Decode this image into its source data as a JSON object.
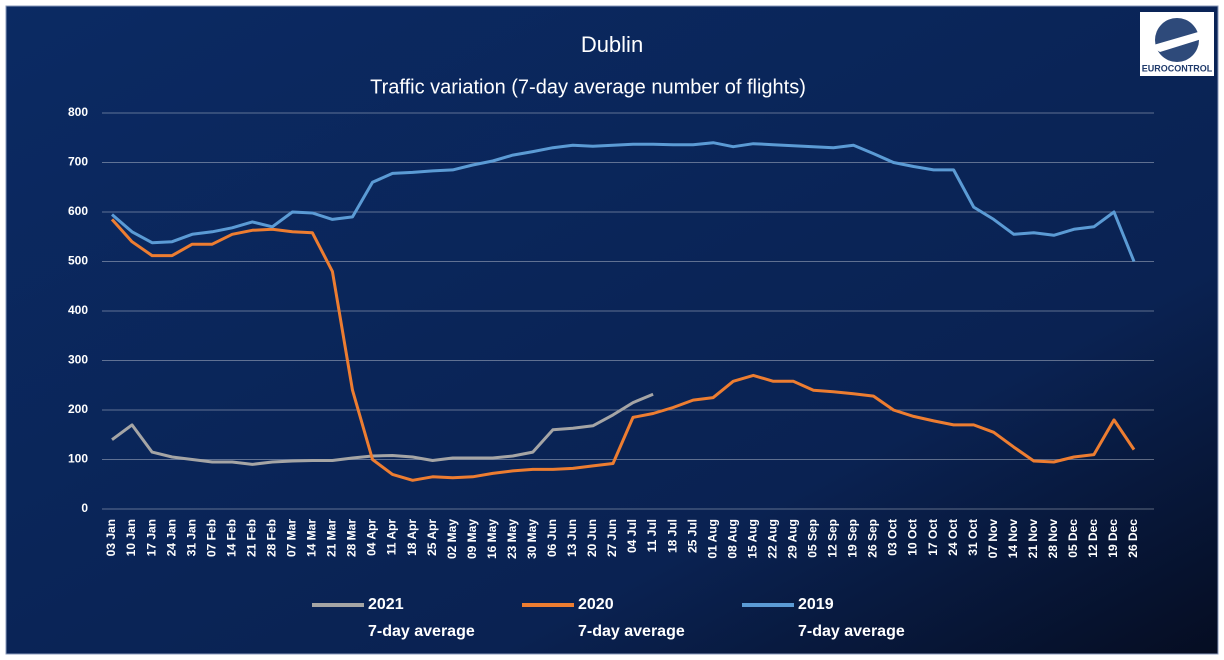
{
  "chart_data": {
    "type": "line",
    "title": "Dublin",
    "subtitle": "Traffic variation (7-day average number of flights)",
    "logo_text": "EUROCONTROL",
    "categories": [
      "03 Jan",
      "10 Jan",
      "17 Jan",
      "24 Jan",
      "31 Jan",
      "07 Feb",
      "14 Feb",
      "21 Feb",
      "28 Feb",
      "07 Mar",
      "14 Mar",
      "21 Mar",
      "28 Mar",
      "04 Apr",
      "11 Apr",
      "18 Apr",
      "25 Apr",
      "02 May",
      "09 May",
      "16 May",
      "23 May",
      "30 May",
      "06 Jun",
      "13 Jun",
      "20 Jun",
      "27 Jun",
      "04 Jul",
      "11 Jul",
      "18 Jul",
      "25 Jul",
      "01 Aug",
      "08 Aug",
      "15 Aug",
      "22 Aug",
      "29 Aug",
      "05 Sep",
      "12 Sep",
      "19 Sep",
      "26 Sep",
      "03 Oct",
      "10 Oct",
      "17 Oct",
      "24 Oct",
      "31 Oct",
      "07 Nov",
      "14 Nov",
      "21 Nov",
      "28 Nov",
      "05 Dec",
      "12 Dec",
      "19 Dec",
      "26 Dec"
    ],
    "series": [
      {
        "name": "2021",
        "note": "7-day average",
        "color": "#a5a5a5",
        "values": [
          140,
          170,
          115,
          105,
          100,
          95,
          95,
          90,
          95,
          97,
          98,
          98,
          103,
          107,
          108,
          105,
          98,
          103,
          103,
          103,
          107,
          115,
          160,
          163,
          168,
          190,
          215,
          232,
          null,
          null,
          null,
          null,
          null,
          null,
          null,
          null,
          null,
          null,
          null,
          null,
          null,
          null,
          null,
          null,
          null,
          null,
          null,
          null,
          null,
          null,
          null,
          null
        ]
      },
      {
        "name": "2020",
        "note": "7-day average",
        "color": "#ed7d31",
        "values": [
          585,
          540,
          512,
          512,
          535,
          535,
          555,
          563,
          565,
          560,
          558,
          480,
          240,
          100,
          70,
          58,
          65,
          63,
          65,
          72,
          77,
          80,
          80,
          82,
          87,
          92,
          185,
          193,
          205,
          220,
          225,
          258,
          270,
          258,
          258,
          240,
          237,
          233,
          228,
          200,
          187,
          178,
          170,
          170,
          155,
          125,
          97,
          95,
          105,
          110,
          180,
          120
        ]
      },
      {
        "name": "2019",
        "note": "7-day average",
        "color": "#5b9bd5",
        "values": [
          595,
          560,
          538,
          540,
          555,
          560,
          568,
          580,
          570,
          600,
          598,
          585,
          590,
          660,
          678,
          680,
          683,
          685,
          695,
          703,
          715,
          722,
          730,
          735,
          733,
          735,
          737,
          737,
          736,
          736,
          740,
          732,
          738,
          736,
          734,
          732,
          730,
          735,
          718,
          700,
          692,
          685,
          685,
          610,
          585,
          555,
          558,
          553,
          565,
          570,
          600,
          500
        ]
      }
    ],
    "ylim": [
      0,
      800
    ],
    "yticks": [
      0,
      100,
      200,
      300,
      400,
      500,
      600,
      700,
      800
    ],
    "grid": true
  }
}
